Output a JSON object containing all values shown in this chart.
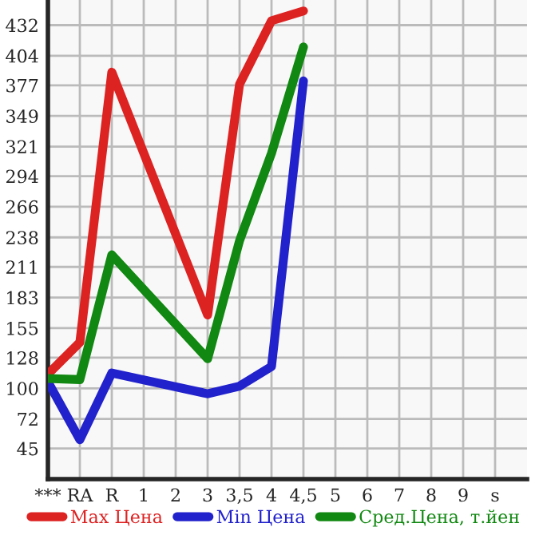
{
  "chart_data": {
    "type": "line",
    "categories": [
      "***",
      "RA",
      "R",
      "1",
      "2",
      "3",
      "3,5",
      "4",
      "4,5",
      "5",
      "6",
      "7",
      "8",
      "9",
      "s"
    ],
    "series": [
      {
        "name": "Max Цена",
        "color": "#dd2222",
        "values": [
          113,
          142,
          389,
          null,
          null,
          167,
          378,
          436,
          445,
          null,
          null,
          null,
          null,
          null,
          null
        ]
      },
      {
        "name": "Min Цена",
        "color": "#2222cc",
        "values": [
          106,
          53,
          114,
          null,
          null,
          95,
          102,
          120,
          381,
          null,
          null,
          null,
          null,
          null,
          null
        ]
      },
      {
        "name": "Сред.Цена, т.йен",
        "color": "#118811",
        "values": [
          109,
          108,
          222,
          null,
          null,
          127,
          235,
          315,
          412,
          null,
          null,
          null,
          null,
          null,
          null
        ]
      }
    ],
    "ylim": [
      17,
      455
    ],
    "yticks": [
      45,
      72,
      100,
      128,
      155,
      183,
      211,
      238,
      266,
      294,
      321,
      349,
      377,
      404,
      432
    ],
    "grid": true,
    "legend": "bottom",
    "marker": "none",
    "line_style": "solid"
  }
}
